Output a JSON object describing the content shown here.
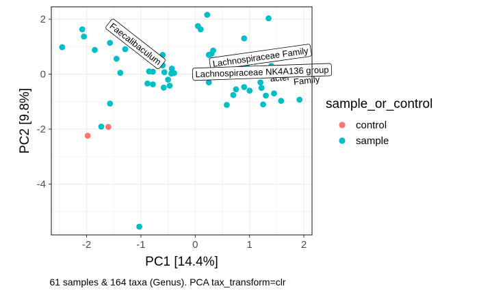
{
  "chart_data": {
    "type": "scatter",
    "xlabel": "PC1 [14.4%]",
    "ylabel": "PC2 [9.8%]",
    "caption": "61 samples & 164 taxa (Genus). PCA tax_transform=clr",
    "xlim": [
      -2.65,
      2.15
    ],
    "ylim": [
      -5.85,
      2.45
    ],
    "x_ticks": [
      -2,
      -1,
      0,
      1,
      2
    ],
    "y_ticks": [
      -4,
      -2,
      0,
      2
    ],
    "grid": true,
    "legend": {
      "title": "sample_or_control",
      "position": "right",
      "entries": [
        {
          "label": "control",
          "color": "#F8766D"
        },
        {
          "label": "sample",
          "color": "#00BFC4"
        }
      ]
    },
    "series": [
      {
        "name": "control",
        "color": "#F8766D",
        "points": [
          [
            -1.98,
            -2.24
          ],
          [
            -1.6,
            -1.92
          ]
        ]
      },
      {
        "name": "sample",
        "color": "#00BFC4",
        "points": [
          [
            -2.45,
            0.98
          ],
          [
            -2.08,
            1.63
          ],
          [
            -2.05,
            1.37
          ],
          [
            -1.85,
            0.88
          ],
          [
            -1.57,
            1.14
          ],
          [
            -1.45,
            0.56
          ],
          [
            -1.38,
            0.05
          ],
          [
            -1.29,
            0.91
          ],
          [
            -1.0,
            1.02
          ],
          [
            -0.95,
            0.95
          ],
          [
            -0.9,
            0.73
          ],
          [
            -0.88,
            -0.34
          ],
          [
            -0.78,
            -0.37
          ],
          [
            -0.78,
            0.09
          ],
          [
            -0.6,
            0.7
          ],
          [
            -0.6,
            0.32
          ],
          [
            -0.58,
            -0.49
          ],
          [
            -0.57,
            0.07
          ],
          [
            -0.5,
            -0.2
          ],
          [
            -0.47,
            -0.42
          ],
          [
            -0.44,
            0.02
          ],
          [
            -0.43,
            0.2
          ],
          [
            -0.39,
            0.04
          ],
          [
            0.05,
            1.75
          ],
          [
            0.1,
            1.63
          ],
          [
            0.22,
            2.16
          ],
          [
            0.25,
            0.7
          ],
          [
            0.3,
            0.74
          ],
          [
            0.33,
            0.86
          ],
          [
            0.2,
            0.0
          ],
          [
            0.25,
            -0.3
          ],
          [
            0.55,
            0.35
          ],
          [
            0.6,
            0.52
          ],
          [
            0.65,
            0.12
          ],
          [
            0.7,
            -0.76
          ],
          [
            0.8,
            0.55
          ],
          [
            0.9,
            1.3
          ],
          [
            0.9,
            -0.47
          ],
          [
            0.95,
            0.35
          ],
          [
            1.0,
            -0.6
          ],
          [
            1.1,
            0.45
          ],
          [
            1.2,
            -0.3
          ],
          [
            1.25,
            -1.1
          ],
          [
            1.35,
            2.03
          ],
          [
            1.4,
            0.3
          ],
          [
            1.45,
            -0.7
          ],
          [
            1.58,
            -0.97
          ],
          [
            1.6,
            0.6
          ],
          [
            1.62,
            0.85
          ],
          [
            1.92,
            -0.93
          ],
          [
            0.75,
            -0.55
          ],
          [
            0.58,
            -1.12
          ],
          [
            1.3,
            -0.78
          ],
          [
            -1.03,
            -5.55
          ],
          [
            -1.57,
            -1.07
          ],
          [
            -1.73,
            -1.91
          ],
          [
            -0.85,
            0.1
          ],
          [
            1.22,
            -0.5
          ],
          [
            0.0,
            0.02
          ]
        ]
      }
    ],
    "loadings": [
      {
        "label": "Faecalibaculum",
        "x": -0.05,
        "y": 0.1,
        "label_x": -1.1,
        "label_y": 1.1,
        "label_rotation": 38
      },
      {
        "label": "Lachnospiraceae Family",
        "x": 0.3,
        "y": 0.03,
        "label_x": 1.2,
        "label_y": 0.62,
        "label_rotation": -8
      },
      {
        "label": "Lachnospiraceae NK4A136 group",
        "x": 0.42,
        "y": 0.01,
        "label_x": 1.23,
        "label_y": 0.08,
        "label_rotation": -2
      }
    ],
    "hidden_loading_label_fragments": [
      {
        "text": "Family",
        "x": 2.05,
        "y": -0.23,
        "rotation": -6
      },
      {
        "text": "acter",
        "x": 1.56,
        "y": -0.13,
        "rotation": -4
      }
    ]
  }
}
